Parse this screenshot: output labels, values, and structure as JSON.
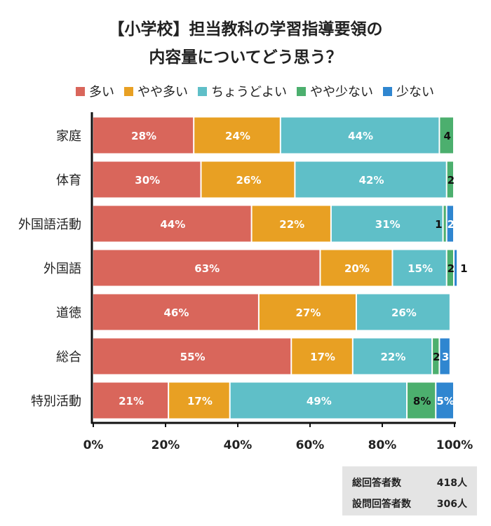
{
  "title_lines": [
    "【小学校】担当教科の学習指導要領の",
    "内容量についてどう思う？"
  ],
  "colors": {
    "多い": "#d9665b",
    "やや多い": "#e8a023",
    "ちょうどよい": "#5fbfc8",
    "やや少ない": "#4caf6e",
    "少ない": "#2f86d0"
  },
  "chart_data": {
    "type": "bar",
    "orientation": "horizontal",
    "stacked": true,
    "legend_position": "top",
    "categories": [
      "家庭",
      "体育",
      "外国語活動",
      "外国語",
      "道徳",
      "総合",
      "特別活動"
    ],
    "series": [
      {
        "name": "多い",
        "values": [
          28,
          30,
          44,
          63,
          46,
          55,
          21
        ],
        "labels": [
          "28%",
          "30%",
          "44%",
          "63%",
          "46%",
          "55%",
          "21%"
        ]
      },
      {
        "name": "やや多い",
        "values": [
          24,
          26,
          22,
          20,
          27,
          17,
          17
        ],
        "labels": [
          "24%",
          "26%",
          "22%",
          "20%",
          "27%",
          "17%",
          "17%"
        ]
      },
      {
        "name": "ちょうどよい",
        "values": [
          44,
          42,
          31,
          15,
          26,
          22,
          49
        ],
        "labels": [
          "44%",
          "42%",
          "31%",
          "15%",
          "26%",
          "22%",
          "49%"
        ]
      },
      {
        "name": "やや少ない",
        "values": [
          4,
          2,
          1,
          2,
          0,
          2,
          8
        ],
        "labels": [
          "4",
          "2",
          "1",
          "2",
          "",
          "2",
          "8%"
        ]
      },
      {
        "name": "少ない",
        "values": [
          0,
          0,
          2,
          1,
          0,
          3,
          5
        ],
        "labels": [
          "",
          "",
          "2",
          "1",
          "",
          "3",
          "5%"
        ]
      }
    ],
    "xlim": [
      0,
      100
    ],
    "xticks": [
      "0%",
      "20%",
      "40%",
      "60%",
      "80%",
      "100%"
    ]
  },
  "footer": {
    "total_label": "総回答者数",
    "total_value": "418人",
    "question_label": "設問回答者数",
    "question_value": "306人"
  }
}
